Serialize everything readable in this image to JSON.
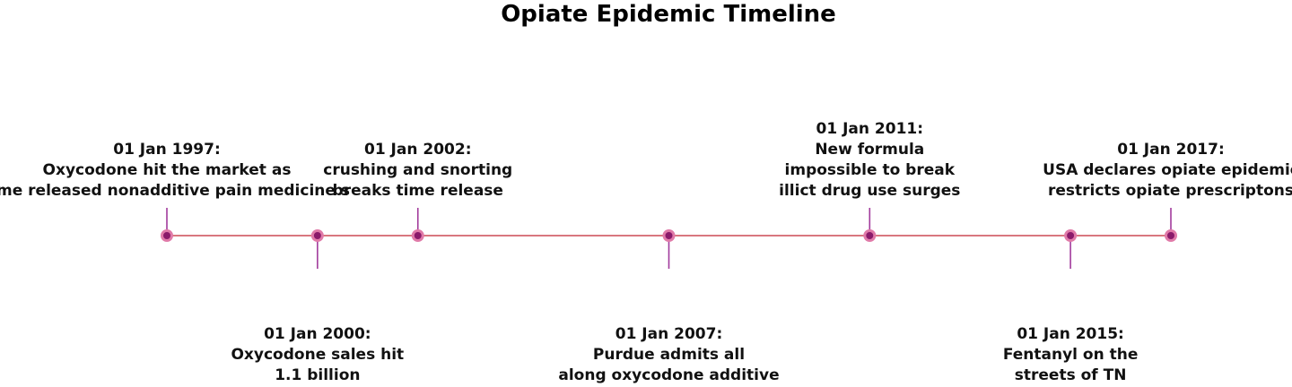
{
  "chart_data": {
    "type": "timeline",
    "title": "Opiate Epidemic Timeline",
    "events": [
      {
        "date": "01 Jan 1997",
        "year": 1997,
        "lines": [
          "Oxycodone hit the market as",
          "time released nonadditive pain medicine s"
        ],
        "side": "above"
      },
      {
        "date": "01 Jan 2000",
        "year": 2000,
        "lines": [
          "Oxycodone sales hit",
          "1.1 billion"
        ],
        "side": "below"
      },
      {
        "date": "01 Jan 2002",
        "year": 2002,
        "lines": [
          "crushing and snorting",
          "breaks time release"
        ],
        "side": "above"
      },
      {
        "date": "01 Jan 2007",
        "year": 2007,
        "lines": [
          "Purdue admits all",
          "along oxycodone additive"
        ],
        "side": "below"
      },
      {
        "date": "01 Jan 2011",
        "year": 2011,
        "lines": [
          "New formula",
          "impossible to break",
          "illict drug use surges"
        ],
        "side": "above"
      },
      {
        "date": "01 Jan 2015",
        "year": 2015,
        "lines": [
          "Fentanyl on the",
          "streets of TN"
        ],
        "side": "below"
      },
      {
        "date": "01 Jan 2017",
        "year": 2017,
        "lines": [
          "USA declares opiate epidemic",
          "restricts opiate prescriptons"
        ],
        "side": "above"
      }
    ],
    "colors": {
      "axis": "#d9777f",
      "stem": "#a23b9c",
      "marker_fill": "#8a1a6a",
      "marker_ring": "#e07aa8"
    }
  }
}
